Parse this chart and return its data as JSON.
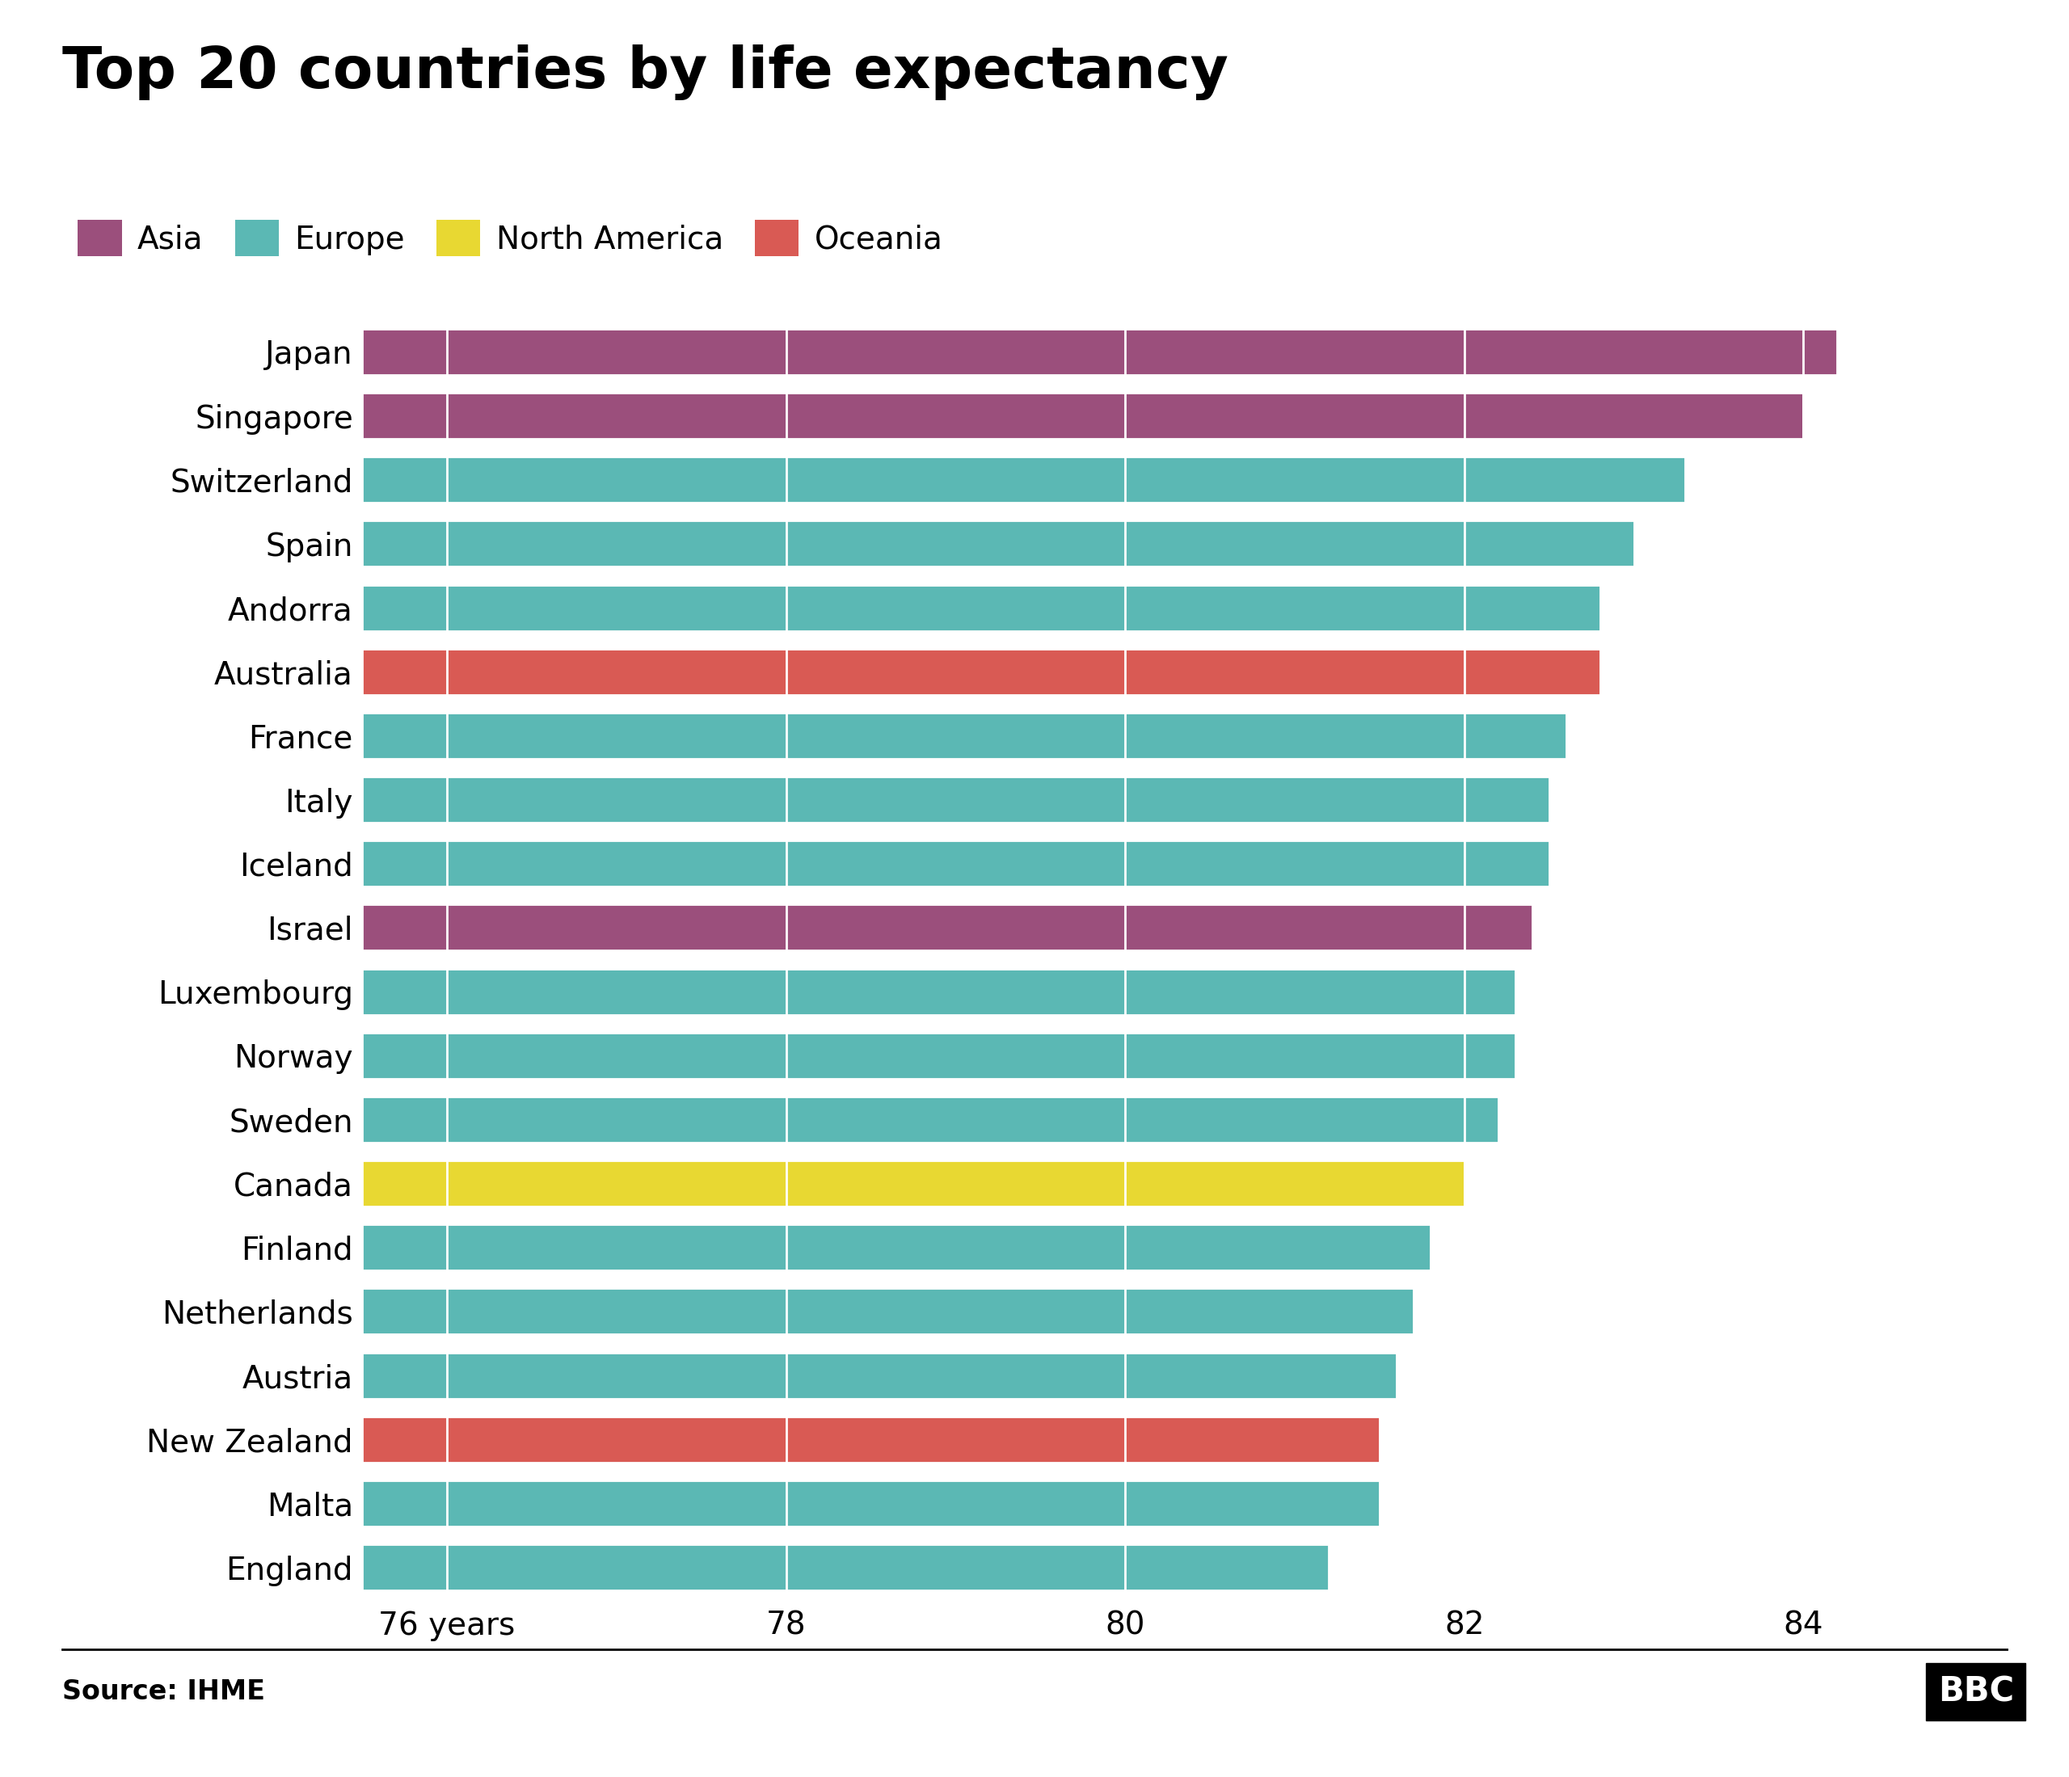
{
  "title": "Top 20 countries by life expectancy",
  "countries": [
    "Japan",
    "Singapore",
    "Switzerland",
    "Spain",
    "Andorra",
    "Australia",
    "France",
    "Italy",
    "Iceland",
    "Israel",
    "Luxembourg",
    "Norway",
    "Sweden",
    "Canada",
    "Finland",
    "Netherlands",
    "Austria",
    "New Zealand",
    "Malta",
    "England"
  ],
  "values": [
    84.2,
    84.0,
    83.3,
    83.0,
    82.8,
    82.8,
    82.6,
    82.5,
    82.5,
    82.4,
    82.3,
    82.3,
    82.2,
    82.0,
    81.8,
    81.7,
    81.6,
    81.5,
    81.5,
    81.2
  ],
  "regions": [
    "Asia",
    "Asia",
    "Europe",
    "Europe",
    "Europe",
    "Oceania",
    "Europe",
    "Europe",
    "Europe",
    "Asia",
    "Europe",
    "Europe",
    "Europe",
    "North America",
    "Europe",
    "Europe",
    "Europe",
    "Oceania",
    "Europe",
    "Europe"
  ],
  "colors": {
    "Asia": "#9b4f7c",
    "Europe": "#5bb8b4",
    "North America": "#e8d832",
    "Oceania": "#d95a54"
  },
  "legend_order": [
    "Asia",
    "Europe",
    "North America",
    "Oceania"
  ],
  "xlim_min": 75.5,
  "xlim_max": 85.2,
  "xticks": [
    76,
    78,
    80,
    82,
    84
  ],
  "xtick_labels": [
    "76 years",
    "78",
    "80",
    "82",
    "84"
  ],
  "source": "Source: IHME",
  "bg_color": "#ffffff",
  "bar_height": 0.72,
  "title_fontsize": 52,
  "label_fontsize": 28,
  "tick_fontsize": 28,
  "legend_fontsize": 28,
  "source_fontsize": 24
}
